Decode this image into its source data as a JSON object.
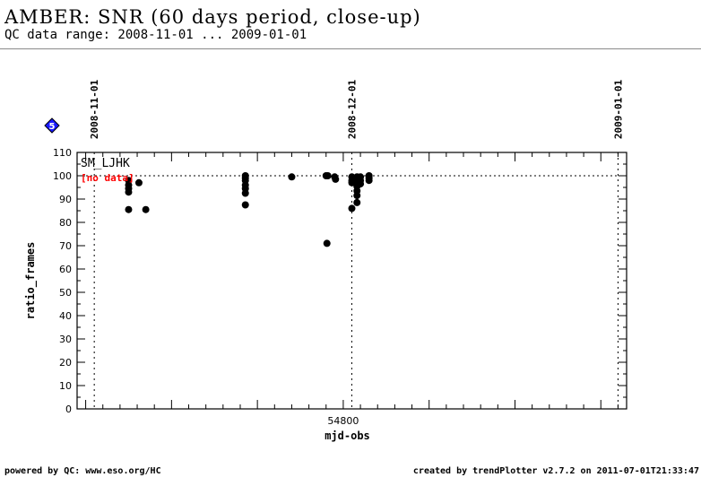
{
  "header": {
    "title": "AMBER: SNR (60 days period, close-up)",
    "subtitle": "QC data range: 2008-11-01 ... 2009-01-01"
  },
  "footer": {
    "left": "powered by QC: www.eso.org/HC",
    "right": "created by trendPlotter v2.7.2 on 2011-07-01T21:33:47"
  },
  "marker": {
    "label": "5",
    "color": "#1a1aff"
  },
  "chart_data": {
    "type": "scatter",
    "xlabel": "mjd-obs",
    "ylabel": "ratio_frames",
    "xlim": [
      54769,
      54833
    ],
    "ylim": [
      0,
      110
    ],
    "yticks": [
      0,
      10,
      20,
      30,
      40,
      50,
      60,
      70,
      80,
      90,
      100,
      110
    ],
    "xticks_labeled": [
      54800
    ],
    "reference_line": 100,
    "date_markers": [
      {
        "label": "2008-11-01",
        "mjd": 54771
      },
      {
        "label": "2008-12-01",
        "mjd": 54801
      },
      {
        "label": "2009-01-01",
        "mjd": 54832
      }
    ],
    "annotations": {
      "series_label": "SM_LJHK",
      "no_data_label": "[no data]",
      "no_data_color": "#ff0000"
    },
    "series": [
      {
        "color": "#000000",
        "points": [
          [
            54775,
            98
          ],
          [
            54775,
            96
          ],
          [
            54775,
            94.5
          ],
          [
            54775,
            93
          ],
          [
            54775,
            85.5
          ],
          [
            54776.2,
            97
          ],
          [
            54777,
            85.5
          ],
          [
            54788.6,
            100
          ],
          [
            54788.6,
            99
          ],
          [
            54788.6,
            98
          ],
          [
            54788.6,
            96
          ],
          [
            54788.6,
            94.5
          ],
          [
            54788.6,
            92.5
          ],
          [
            54788.6,
            87.5
          ],
          [
            54794,
            99.5
          ],
          [
            54798,
            100
          ],
          [
            54798.2,
            100
          ],
          [
            54798.1,
            71
          ],
          [
            54799,
            99.5
          ],
          [
            54799.1,
            98.5
          ],
          [
            54801,
            99.5
          ],
          [
            54801,
            98
          ],
          [
            54801,
            97
          ],
          [
            54801,
            86
          ],
          [
            54801.6,
            99.5
          ],
          [
            54801.6,
            98.5
          ],
          [
            54801.6,
            97
          ],
          [
            54801.6,
            95.5
          ],
          [
            54801.6,
            93.5
          ],
          [
            54801.6,
            91.5
          ],
          [
            54801.6,
            88.5
          ],
          [
            54802,
            99.5
          ],
          [
            54802,
            98
          ],
          [
            54802,
            96.5
          ],
          [
            54803,
            100
          ],
          [
            54803,
            99
          ],
          [
            54803,
            98
          ]
        ]
      }
    ]
  }
}
